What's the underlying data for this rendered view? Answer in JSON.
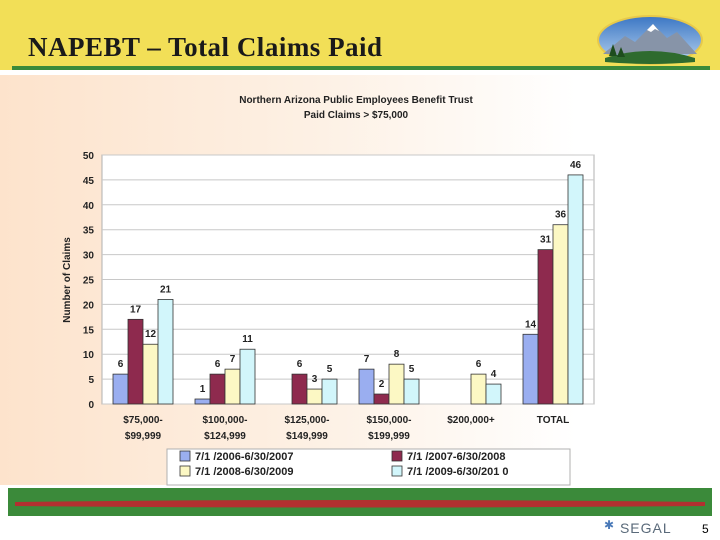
{
  "slide": {
    "title": "NAPEBT – Total Claims Paid",
    "brand": "SEGAL",
    "page_number": "5"
  },
  "colors": {
    "header_yellow": "#f2df57",
    "header_green": "#3b8a3a",
    "footer_red": "#b23030"
  },
  "icons": [
    "mountain-logo",
    "segal-star-icon"
  ],
  "chart_data": {
    "type": "bar",
    "title": "Northern Arizona Public Employees Benefit Trust",
    "subtitle": "Paid Claims > $75,000",
    "xlabel": "",
    "ylabel": "Number of Claims",
    "ylim": [
      0,
      50
    ],
    "yticks": [
      0,
      5,
      10,
      15,
      20,
      25,
      30,
      35,
      40,
      45,
      50
    ],
    "grid": true,
    "legend_position": "bottom",
    "categories": [
      [
        "$75,000-",
        "$99,999"
      ],
      [
        "$100,000-",
        "$124,999"
      ],
      [
        "$125,000-",
        "$149,999"
      ],
      [
        "$150,000-",
        "$199,999"
      ],
      [
        "$200,000+"
      ],
      [
        "TOTAL"
      ]
    ],
    "series": [
      {
        "name": "7/1 /2006-6/30/2007",
        "color": "#9aaef0",
        "values": [
          6,
          1,
          null,
          7,
          null,
          14
        ]
      },
      {
        "name": "7/1 /2007-6/30/2008",
        "color": "#8e2a4e",
        "values": [
          17,
          6,
          6,
          2,
          null,
          31
        ]
      },
      {
        "name": "7/1 /2008-6/30/2009",
        "color": "#fcf8c4",
        "values": [
          12,
          7,
          3,
          8,
          6,
          36
        ]
      },
      {
        "name": "7/1 /2009-6/30/201 0",
        "color": "#d2f6fb",
        "values": [
          21,
          11,
          5,
          5,
          4,
          46
        ]
      }
    ]
  }
}
